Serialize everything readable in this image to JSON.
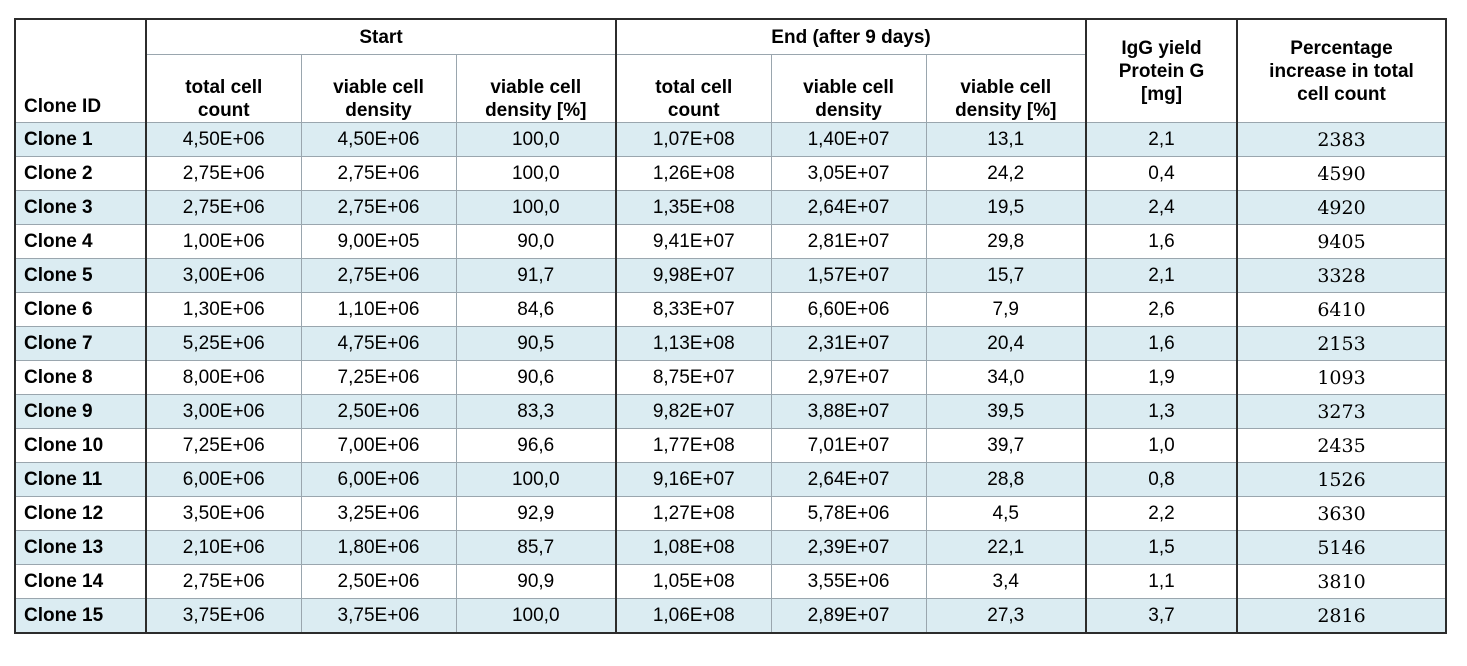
{
  "headers": {
    "clone_id": "Clone ID",
    "start": "Start",
    "end": "End (after 9 days)",
    "igg_line1": "IgG yield",
    "igg_line2": "Protein G",
    "igg_line3": "[mg]",
    "pct_line1": "Percentage",
    "pct_line2": "increase in total",
    "pct_line3": "cell count",
    "tcc_line1": "total cell",
    "tcc_line2": "count",
    "vcd_line1": "viable cell",
    "vcd_line2": "density",
    "vcdp_line1": "viable cell",
    "vcdp_line2": "density [%]"
  },
  "rows": [
    {
      "id": "Clone 1",
      "s_total": "4,50E+06",
      "s_viable": "4,50E+06",
      "s_pct": "100,0",
      "e_total": "1,07E+08",
      "e_viable": "1,40E+07",
      "e_pct": "13,1",
      "igg": "2,1",
      "increase": "2383"
    },
    {
      "id": "Clone 2",
      "s_total": "2,75E+06",
      "s_viable": "2,75E+06",
      "s_pct": "100,0",
      "e_total": "1,26E+08",
      "e_viable": "3,05E+07",
      "e_pct": "24,2",
      "igg": "0,4",
      "increase": "4590"
    },
    {
      "id": "Clone 3",
      "s_total": "2,75E+06",
      "s_viable": "2,75E+06",
      "s_pct": "100,0",
      "e_total": "1,35E+08",
      "e_viable": "2,64E+07",
      "e_pct": "19,5",
      "igg": "2,4",
      "increase": "4920"
    },
    {
      "id": "Clone 4",
      "s_total": "1,00E+06",
      "s_viable": "9,00E+05",
      "s_pct": "90,0",
      "e_total": "9,41E+07",
      "e_viable": "2,81E+07",
      "e_pct": "29,8",
      "igg": "1,6",
      "increase": "9405"
    },
    {
      "id": "Clone 5",
      "s_total": "3,00E+06",
      "s_viable": "2,75E+06",
      "s_pct": "91,7",
      "e_total": "9,98E+07",
      "e_viable": "1,57E+07",
      "e_pct": "15,7",
      "igg": "2,1",
      "increase": "3328"
    },
    {
      "id": "Clone 6",
      "s_total": "1,30E+06",
      "s_viable": "1,10E+06",
      "s_pct": "84,6",
      "e_total": "8,33E+07",
      "e_viable": "6,60E+06",
      "e_pct": "7,9",
      "igg": "2,6",
      "increase": "6410"
    },
    {
      "id": "Clone 7",
      "s_total": "5,25E+06",
      "s_viable": "4,75E+06",
      "s_pct": "90,5",
      "e_total": "1,13E+08",
      "e_viable": "2,31E+07",
      "e_pct": "20,4",
      "igg": "1,6",
      "increase": "2153"
    },
    {
      "id": "Clone 8",
      "s_total": "8,00E+06",
      "s_viable": "7,25E+06",
      "s_pct": "90,6",
      "e_total": "8,75E+07",
      "e_viable": "2,97E+07",
      "e_pct": "34,0",
      "igg": "1,9",
      "increase": "1093"
    },
    {
      "id": "Clone 9",
      "s_total": "3,00E+06",
      "s_viable": "2,50E+06",
      "s_pct": "83,3",
      "e_total": "9,82E+07",
      "e_viable": "3,88E+07",
      "e_pct": "39,5",
      "igg": "1,3",
      "increase": "3273"
    },
    {
      "id": "Clone 10",
      "s_total": "7,25E+06",
      "s_viable": "7,00E+06",
      "s_pct": "96,6",
      "e_total": "1,77E+08",
      "e_viable": "7,01E+07",
      "e_pct": "39,7",
      "igg": "1,0",
      "increase": "2435"
    },
    {
      "id": "Clone 11",
      "s_total": "6,00E+06",
      "s_viable": "6,00E+06",
      "s_pct": "100,0",
      "e_total": "9,16E+07",
      "e_viable": "2,64E+07",
      "e_pct": "28,8",
      "igg": "0,8",
      "increase": "1526"
    },
    {
      "id": "Clone 12",
      "s_total": "3,50E+06",
      "s_viable": "3,25E+06",
      "s_pct": "92,9",
      "e_total": "1,27E+08",
      "e_viable": "5,78E+06",
      "e_pct": "4,5",
      "igg": "2,2",
      "increase": "3630"
    },
    {
      "id": "Clone 13",
      "s_total": "2,10E+06",
      "s_viable": "1,80E+06",
      "s_pct": "85,7",
      "e_total": "1,08E+08",
      "e_viable": "2,39E+07",
      "e_pct": "22,1",
      "igg": "1,5",
      "increase": "5146"
    },
    {
      "id": "Clone 14",
      "s_total": "2,75E+06",
      "s_viable": "2,50E+06",
      "s_pct": "90,9",
      "e_total": "1,05E+08",
      "e_viable": "3,55E+06",
      "e_pct": "3,4",
      "igg": "1,1",
      "increase": "3810"
    },
    {
      "id": "Clone 15",
      "s_total": "3,75E+06",
      "s_viable": "3,75E+06",
      "s_pct": "100,0",
      "e_total": "1,06E+08",
      "e_viable": "2,89E+07",
      "e_pct": "27,3",
      "igg": "3,7",
      "increase": "2816"
    }
  ]
}
